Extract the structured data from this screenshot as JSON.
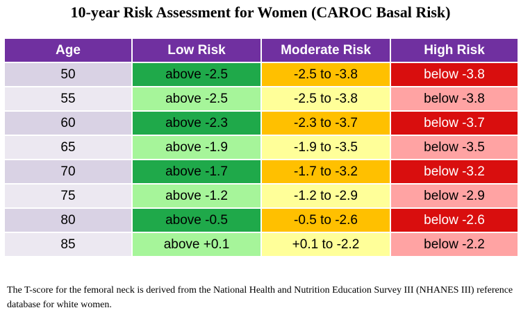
{
  "title": "10-year Risk Assessment for Women (CAROC Basal Risk)",
  "table": {
    "headers": {
      "age": "Age",
      "low": "Low Risk",
      "moderate": "Moderate Risk",
      "high": "High Risk"
    },
    "rows": [
      {
        "age": "50",
        "low": "above -2.5",
        "moderate": "-2.5 to -3.8",
        "high": "below -3.8"
      },
      {
        "age": "55",
        "low": "above -2.5",
        "moderate": "-2.5 to -3.8",
        "high": "below -3.8"
      },
      {
        "age": "60",
        "low": "above -2.3",
        "moderate": "-2.3 to -3.7",
        "high": "below -3.7"
      },
      {
        "age": "65",
        "low": "above -1.9",
        "moderate": "-1.9 to -3.5",
        "high": "below -3.5"
      },
      {
        "age": "70",
        "low": "above -1.7",
        "moderate": "-1.7 to -3.2",
        "high": "below -3.2"
      },
      {
        "age": "75",
        "low": "above -1.2",
        "moderate": "-1.2 to -2.9",
        "high": "below -2.9"
      },
      {
        "age": "80",
        "low": "above -0.5",
        "moderate": "-0.5 to -2.6",
        "high": "below -2.6"
      },
      {
        "age": "85",
        "low": "above +0.1",
        "moderate": "+0.1 to -2.2",
        "high": "below -2.2"
      }
    ]
  },
  "footnote": "The T-score for the femoral neck is derived from the National Health and Nutrition Education Survey III (NHANES III) reference database for white women.",
  "colors": {
    "header": "#7030a0",
    "low_dark": "#1fa94a",
    "low_light": "#a6f59a",
    "moderate_dark": "#ffc000",
    "moderate_light": "#ffff99",
    "high_dark": "#d90e0e",
    "high_light": "#ffa3a3"
  }
}
